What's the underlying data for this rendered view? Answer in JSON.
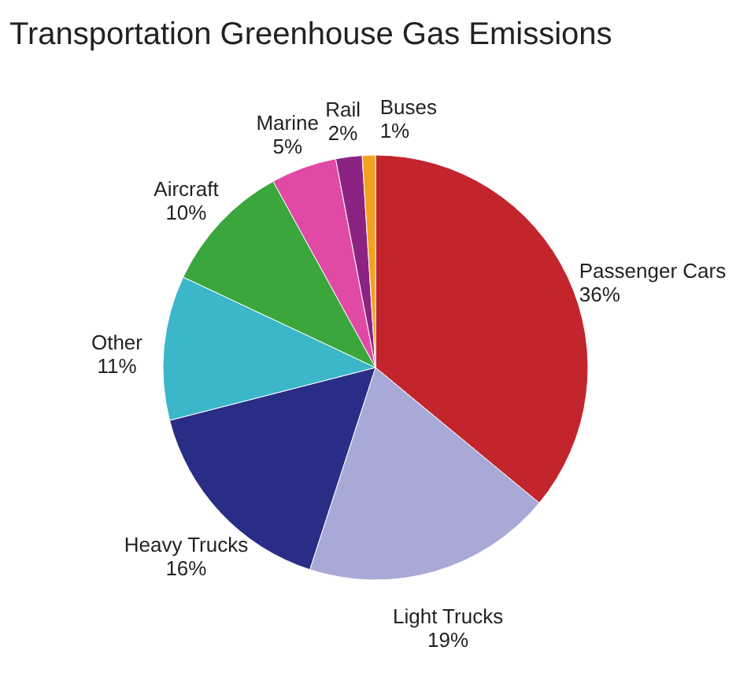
{
  "chart_data": {
    "type": "pie",
    "title": "Transportation Greenhouse Gas Emissions",
    "categories": [
      "Passenger Cars",
      "Light Trucks",
      "Heavy Trucks",
      "Other",
      "Aircraft",
      "Marine",
      "Rail",
      "Buses"
    ],
    "values": [
      36,
      19,
      16,
      11,
      10,
      5,
      2,
      1
    ],
    "value_labels": [
      "36%",
      "19%",
      "16%",
      "11%",
      "10%",
      "5%",
      "2%",
      "1%"
    ],
    "colors": [
      "#c3252d",
      "#a9a9d8",
      "#2a2d85",
      "#3cb6c9",
      "#3aa63c",
      "#e04aa4",
      "#8c2383",
      "#f4a11f"
    ],
    "legend": false
  }
}
